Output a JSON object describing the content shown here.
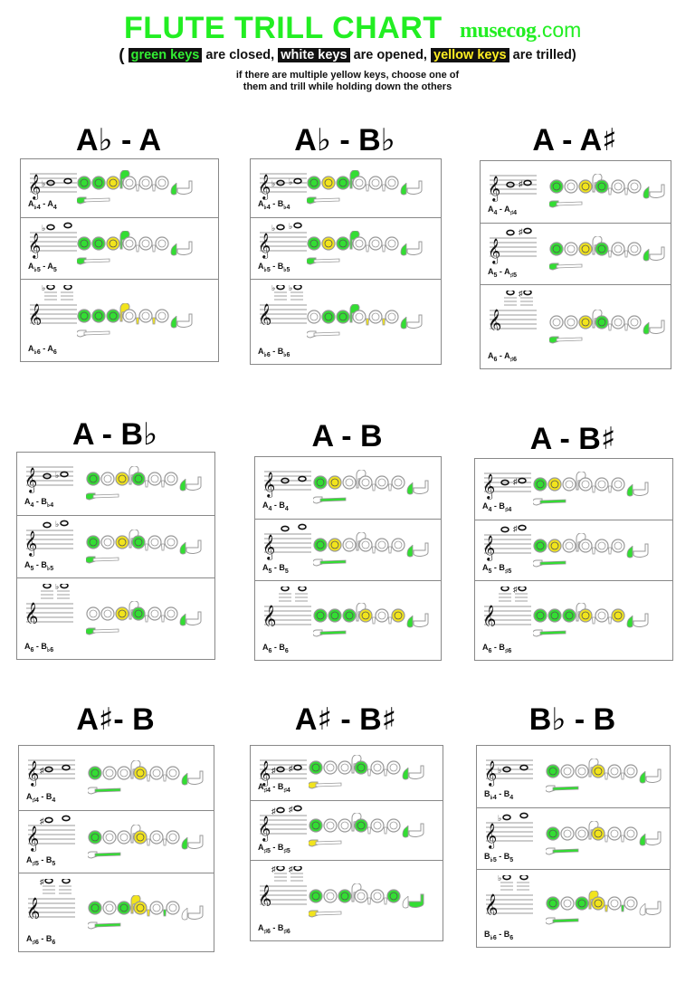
{
  "header": {
    "title": "FLUTE TRILL CHART",
    "brand": "musecog",
    "brand_suffix": ".com",
    "legend": {
      "open_paren": "(",
      "green_label": "green keys",
      "green_text": " are closed, ",
      "white_label": "white keys",
      "white_text": " are opened, ",
      "yellow_label": "yellow keys",
      "yellow_text": " are trilled)"
    },
    "note_line1": "if there are multiple yellow keys, choose one of",
    "note_line2": "them and trill while holding down the others"
  },
  "colors": {
    "closed": "#33dd33",
    "open": "#ffffff",
    "trill": "#f2e41c",
    "title_green": "#22ee22",
    "border": "#888888"
  },
  "groups": [
    {
      "title_a": "A",
      "title_a_acc": "♭",
      "title_sep": " - ",
      "title_b": "A",
      "title_b_acc": "",
      "rows": [
        {
          "label_a": "A",
          "acc_a": "♭",
          "oct_a": "4",
          "label_b": "A",
          "acc_b": "",
          "oct_b": "4",
          "keys": {
            "h1": "g",
            "h2": "g",
            "h3": "y",
            "gs": "g",
            "h4": "w",
            "t1": "w",
            "h5": "w",
            "t2": "w",
            "h6": "w",
            "eb": "g",
            "thumb": "g",
            "bb": "w",
            "foot": "w"
          }
        },
        {
          "label_a": "A",
          "acc_a": "♭",
          "oct_a": "5",
          "label_b": "A",
          "acc_b": "",
          "oct_b": "5",
          "keys": {
            "h1": "g",
            "h2": "g",
            "h3": "y",
            "gs": "g",
            "h4": "w",
            "t1": "w",
            "h5": "w",
            "t2": "w",
            "h6": "w",
            "eb": "g",
            "thumb": "g",
            "bb": "w",
            "foot": "w"
          }
        },
        {
          "label_a": "A",
          "acc_a": "♭",
          "oct_a": "6",
          "label_b": "A",
          "acc_b": "",
          "oct_b": "6",
          "keys": {
            "h1": "g",
            "h2": "g",
            "h3": "g",
            "gs": "y",
            "h4": "w",
            "t1": "y",
            "h5": "w",
            "t2": "y",
            "h6": "w",
            "eb": "g",
            "thumb": "w",
            "bb": "w",
            "foot": "w"
          }
        }
      ]
    },
    {
      "title_a": "A",
      "title_a_acc": "♭",
      "title_sep": " - ",
      "title_b": "B",
      "title_b_acc": "♭",
      "rows": [
        {
          "label_a": "A",
          "acc_a": "♭",
          "oct_a": "4",
          "label_b": "B",
          "acc_b": "♭",
          "oct_b": "4",
          "keys": {
            "h1": "g",
            "h2": "y",
            "h3": "g",
            "gs": "g",
            "h4": "w",
            "t1": "w",
            "h5": "w",
            "t2": "w",
            "h6": "w",
            "eb": "g",
            "thumb": "g",
            "bb": "w",
            "foot": "w"
          }
        },
        {
          "label_a": "A",
          "acc_a": "♭",
          "oct_a": "5",
          "label_b": "B",
          "acc_b": "♭",
          "oct_b": "5",
          "keys": {
            "h1": "g",
            "h2": "y",
            "h3": "g",
            "gs": "g",
            "h4": "w",
            "t1": "w",
            "h5": "w",
            "t2": "w",
            "h6": "w",
            "eb": "g",
            "thumb": "g",
            "bb": "w",
            "foot": "w"
          }
        },
        {
          "label_a": "A",
          "acc_a": "♭",
          "oct_a": "6",
          "label_b": "B",
          "acc_b": "♭",
          "oct_b": "6",
          "keys": {
            "h1": "w",
            "h2": "g",
            "h3": "g",
            "gs": "g",
            "h4": "w",
            "t1": "y",
            "h5": "w",
            "t2": "y",
            "h6": "w",
            "eb": "g",
            "thumb": "w",
            "bb": "w",
            "foot": "w"
          }
        }
      ]
    },
    {
      "title_a": "A",
      "title_a_acc": "",
      "title_sep": "  - ",
      "title_b": "A",
      "title_b_acc": "♯",
      "rows": [
        {
          "label_a": "A",
          "acc_a": "",
          "oct_a": "4",
          "label_b": "A",
          "acc_b": "♯",
          "oct_b": "4",
          "keys": {
            "h1": "g",
            "h2": "w",
            "h3": "y",
            "gs": "w",
            "h4": "g",
            "t1": "w",
            "h5": "w",
            "t2": "w",
            "h6": "w",
            "eb": "g",
            "thumb": "g",
            "bb": "w",
            "foot": "w"
          }
        },
        {
          "label_a": "A",
          "acc_a": "",
          "oct_a": "5",
          "label_b": "A",
          "acc_b": "♯",
          "oct_b": "5",
          "keys": {
            "h1": "g",
            "h2": "w",
            "h3": "y",
            "gs": "w",
            "h4": "g",
            "t1": "w",
            "h5": "w",
            "t2": "w",
            "h6": "w",
            "eb": "g",
            "thumb": "g",
            "bb": "w",
            "foot": "w"
          }
        },
        {
          "label_a": "A",
          "acc_a": "",
          "oct_a": "6",
          "label_b": "A",
          "acc_b": "♯",
          "oct_b": "6",
          "keys": {
            "h1": "w",
            "h2": "w",
            "h3": "y",
            "gs": "w",
            "h4": "g",
            "t1": "w",
            "h5": "w",
            "t2": "w",
            "h6": "w",
            "eb": "g",
            "thumb": "g",
            "bb": "w",
            "foot": "w"
          }
        }
      ]
    },
    {
      "title_a": "A",
      "title_a_acc": "",
      "title_sep": "  - ",
      "title_b": "B",
      "title_b_acc": "♭",
      "rows": [
        {
          "label_a": "A",
          "acc_a": "",
          "oct_a": "4",
          "label_b": "B",
          "acc_b": "♭",
          "oct_b": "4",
          "keys": {
            "h1": "g",
            "h2": "w",
            "h3": "y",
            "gs": "w",
            "h4": "g",
            "t1": "w",
            "h5": "w",
            "t2": "w",
            "h6": "w",
            "eb": "g",
            "thumb": "g",
            "bb": "w",
            "foot": "w"
          }
        },
        {
          "label_a": "A",
          "acc_a": "",
          "oct_a": "5",
          "label_b": "B",
          "acc_b": "♭",
          "oct_b": "5",
          "keys": {
            "h1": "g",
            "h2": "w",
            "h3": "y",
            "gs": "w",
            "h4": "g",
            "t1": "w",
            "h5": "w",
            "t2": "w",
            "h6": "w",
            "eb": "g",
            "thumb": "g",
            "bb": "w",
            "foot": "w"
          }
        },
        {
          "label_a": "A",
          "acc_a": "",
          "oct_a": "6",
          "label_b": "B",
          "acc_b": "♭",
          "oct_b": "6",
          "keys": {
            "h1": "w",
            "h2": "w",
            "h3": "y",
            "gs": "w",
            "h4": "g",
            "t1": "w",
            "h5": "w",
            "t2": "w",
            "h6": "w",
            "eb": "g",
            "thumb": "g",
            "bb": "w",
            "foot": "w"
          }
        }
      ]
    },
    {
      "title_a": "A",
      "title_a_acc": "",
      "title_sep": " - ",
      "title_b": "B",
      "title_b_acc": "",
      "rows": [
        {
          "label_a": "A",
          "acc_a": "",
          "oct_a": "4",
          "label_b": "B",
          "acc_b": "",
          "oct_b": "4",
          "keys": {
            "h1": "g",
            "h2": "y",
            "h3": "w",
            "gs": "w",
            "h4": "w",
            "t1": "w",
            "h5": "w",
            "t2": "w",
            "h6": "w",
            "eb": "g",
            "thumb": "w",
            "bb": "g",
            "foot": "w"
          }
        },
        {
          "label_a": "A",
          "acc_a": "",
          "oct_a": "5",
          "label_b": "B",
          "acc_b": "",
          "oct_b": "5",
          "keys": {
            "h1": "g",
            "h2": "y",
            "h3": "w",
            "gs": "w",
            "h4": "w",
            "t1": "w",
            "h5": "w",
            "t2": "w",
            "h6": "w",
            "eb": "g",
            "thumb": "w",
            "bb": "g",
            "foot": "w"
          }
        },
        {
          "label_a": "A",
          "acc_a": "",
          "oct_a": "6",
          "label_b": "B",
          "acc_b": "",
          "oct_b": "6",
          "keys": {
            "h1": "g",
            "h2": "g",
            "h3": "g",
            "gs": "w",
            "h4": "y",
            "t1": "w",
            "h5": "w",
            "t2": "w",
            "h6": "y",
            "eb": "g",
            "thumb": "w",
            "bb": "g",
            "foot": "w"
          }
        }
      ]
    },
    {
      "title_a": "A",
      "title_a_acc": "",
      "title_sep": " - ",
      "title_b": "B",
      "title_b_acc": "♯",
      "rows": [
        {
          "label_a": "A",
          "acc_a": "",
          "oct_a": "4",
          "label_b": "B",
          "acc_b": "♯",
          "oct_b": "4",
          "keys": {
            "h1": "g",
            "h2": "y",
            "h3": "w",
            "gs": "w",
            "h4": "w",
            "t1": "w",
            "h5": "w",
            "t2": "w",
            "h6": "w",
            "eb": "g",
            "thumb": "w",
            "bb": "g",
            "foot": "w"
          }
        },
        {
          "label_a": "A",
          "acc_a": "",
          "oct_a": "5",
          "label_b": "B",
          "acc_b": "♯",
          "oct_b": "5",
          "keys": {
            "h1": "g",
            "h2": "y",
            "h3": "w",
            "gs": "w",
            "h4": "w",
            "t1": "w",
            "h5": "w",
            "t2": "w",
            "h6": "w",
            "eb": "g",
            "thumb": "w",
            "bb": "g",
            "foot": "w"
          }
        },
        {
          "label_a": "A",
          "acc_a": "",
          "oct_a": "6",
          "label_b": "B",
          "acc_b": "♯",
          "oct_b": "6",
          "keys": {
            "h1": "g",
            "h2": "g",
            "h3": "g",
            "gs": "w",
            "h4": "y",
            "t1": "w",
            "h5": "w",
            "t2": "w",
            "h6": "y",
            "eb": "g",
            "thumb": "w",
            "bb": "g",
            "foot": "w"
          }
        }
      ]
    },
    {
      "title_a": "A",
      "title_a_acc": "♯",
      "title_sep": "- ",
      "title_b": "B",
      "title_b_acc": "",
      "rows": [
        {
          "label_a": "A",
          "acc_a": "♯",
          "oct_a": "4",
          "label_b": "B",
          "acc_b": "",
          "oct_b": "4",
          "keys": {
            "h1": "g",
            "h2": "w",
            "h3": "w",
            "gs": "w",
            "h4": "y",
            "t1": "w",
            "h5": "w",
            "t2": "w",
            "h6": "w",
            "eb": "g",
            "thumb": "w",
            "bb": "g",
            "foot": "w"
          }
        },
        {
          "label_a": "A",
          "acc_a": "♯",
          "oct_a": "5",
          "label_b": "B",
          "acc_b": "",
          "oct_b": "5",
          "keys": {
            "h1": "g",
            "h2": "w",
            "h3": "w",
            "gs": "w",
            "h4": "y",
            "t1": "w",
            "h5": "w",
            "t2": "w",
            "h6": "w",
            "eb": "g",
            "thumb": "w",
            "bb": "g",
            "foot": "w"
          }
        },
        {
          "label_a": "A",
          "acc_a": "♯",
          "oct_a": "6",
          "label_b": "B",
          "acc_b": "",
          "oct_b": "6",
          "keys": {
            "h1": "g",
            "h2": "w",
            "h3": "g",
            "gs": "y",
            "h4": "y",
            "t1": "y",
            "h5": "w",
            "t2": "g",
            "h6": "w",
            "eb": "w",
            "thumb": "w",
            "bb": "g",
            "foot": "w"
          }
        }
      ]
    },
    {
      "title_a": "A",
      "title_a_acc": "♯",
      "title_sep": " - ",
      "title_b": "B",
      "title_b_acc": "♯",
      "rows": [
        {
          "label_a": "A",
          "acc_a": "♯",
          "oct_a": "4",
          "label_b": "B",
          "acc_b": "♯",
          "oct_b": "4",
          "keys": {
            "h1": "g",
            "h2": "w",
            "h3": "w",
            "gs": "w",
            "h4": "g",
            "t1": "w",
            "h5": "w",
            "t2": "w",
            "h6": "w",
            "eb": "g",
            "thumb": "y",
            "bb": "w",
            "foot": "w"
          }
        },
        {
          "label_a": "A",
          "acc_a": "♯",
          "oct_a": "5",
          "label_b": "B",
          "acc_b": "♯",
          "oct_b": "5",
          "keys": {
            "h1": "g",
            "h2": "w",
            "h3": "w",
            "gs": "w",
            "h4": "g",
            "t1": "w",
            "h5": "w",
            "t2": "w",
            "h6": "w",
            "eb": "g",
            "thumb": "y",
            "bb": "w",
            "foot": "w"
          }
        },
        {
          "label_a": "A",
          "acc_a": "♯",
          "oct_a": "6",
          "label_b": "B",
          "acc_b": "♯",
          "oct_b": "6",
          "keys": {
            "h1": "g",
            "h2": "w",
            "h3": "g",
            "gs": "w",
            "h4": "w",
            "t1": "w",
            "h5": "w",
            "t2": "w",
            "h6": "g",
            "eb": "w",
            "thumb": "y",
            "bb": "w",
            "foot": "g"
          }
        }
      ]
    },
    {
      "title_a": "B",
      "title_a_acc": "♭",
      "title_sep": " - ",
      "title_b": "B",
      "title_b_acc": "",
      "rows": [
        {
          "label_a": "B",
          "acc_a": "♭",
          "oct_a": "4",
          "label_b": "B",
          "acc_b": "",
          "oct_b": "4",
          "keys": {
            "h1": "g",
            "h2": "w",
            "h3": "w",
            "gs": "w",
            "h4": "y",
            "t1": "w",
            "h5": "w",
            "t2": "w",
            "h6": "w",
            "eb": "g",
            "thumb": "w",
            "bb": "g",
            "foot": "w"
          }
        },
        {
          "label_a": "B",
          "acc_a": "♭",
          "oct_a": "5",
          "label_b": "B",
          "acc_b": "",
          "oct_b": "5",
          "keys": {
            "h1": "g",
            "h2": "w",
            "h3": "w",
            "gs": "w",
            "h4": "y",
            "t1": "w",
            "h5": "w",
            "t2": "w",
            "h6": "w",
            "eb": "g",
            "thumb": "w",
            "bb": "g",
            "foot": "w"
          }
        },
        {
          "label_a": "B",
          "acc_a": "♭",
          "oct_a": "6",
          "label_b": "B",
          "acc_b": "",
          "oct_b": "6",
          "keys": {
            "h1": "g",
            "h2": "w",
            "h3": "g",
            "gs": "y",
            "h4": "y",
            "t1": "y",
            "h5": "w",
            "t2": "g",
            "h6": "w",
            "eb": "w",
            "thumb": "w",
            "bb": "g",
            "foot": "w"
          }
        }
      ]
    }
  ]
}
